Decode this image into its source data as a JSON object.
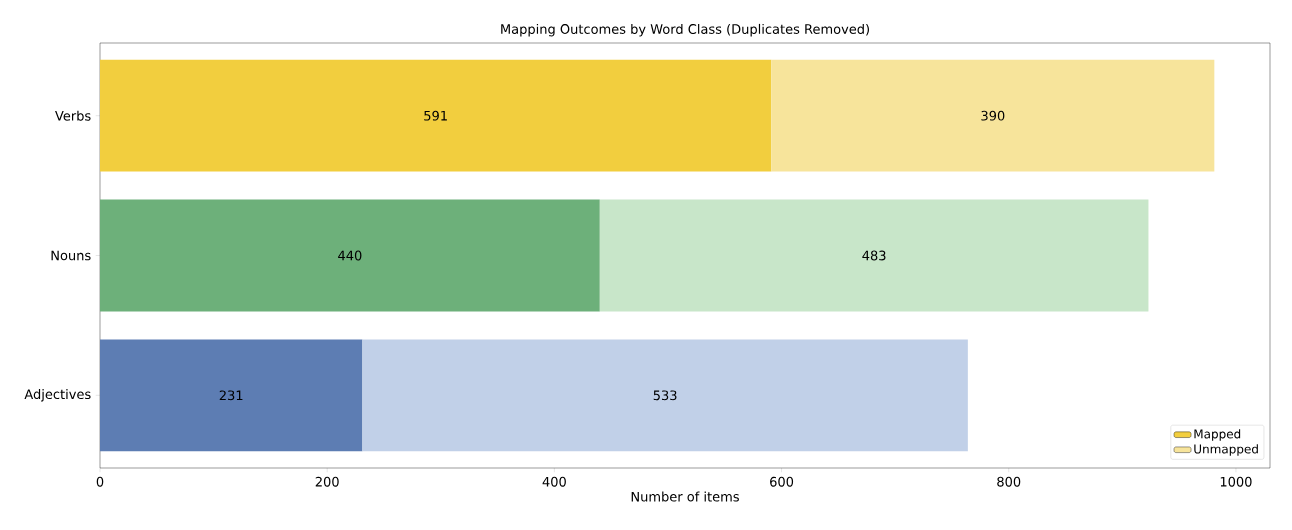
{
  "chart_data": {
    "type": "bar",
    "orientation": "horizontal",
    "stacked": true,
    "title": "Mapping Outcomes by Word Class (Duplicates Removed)",
    "xlabel": "Number of items",
    "categories": [
      "Verbs",
      "Nouns",
      "Adjectives"
    ],
    "series": [
      {
        "name": "Mapped",
        "color": "#f2ce3e",
        "colors": [
          "#f2ce3e",
          "#6db07a",
          "#5d7db3"
        ],
        "values": [
          591,
          440,
          231
        ]
      },
      {
        "name": "Unmapped",
        "color": "#f7e49b",
        "colors": [
          "#f7e49b",
          "#c8e6c9",
          "#c1d0e8"
        ],
        "values": [
          390,
          483,
          533
        ]
      }
    ],
    "xlim": [
      0,
      1030
    ],
    "xticks": [
      0,
      200,
      400,
      600,
      800,
      1000
    ],
    "data_labels": true,
    "legend": "bottom right",
    "grid": false
  }
}
